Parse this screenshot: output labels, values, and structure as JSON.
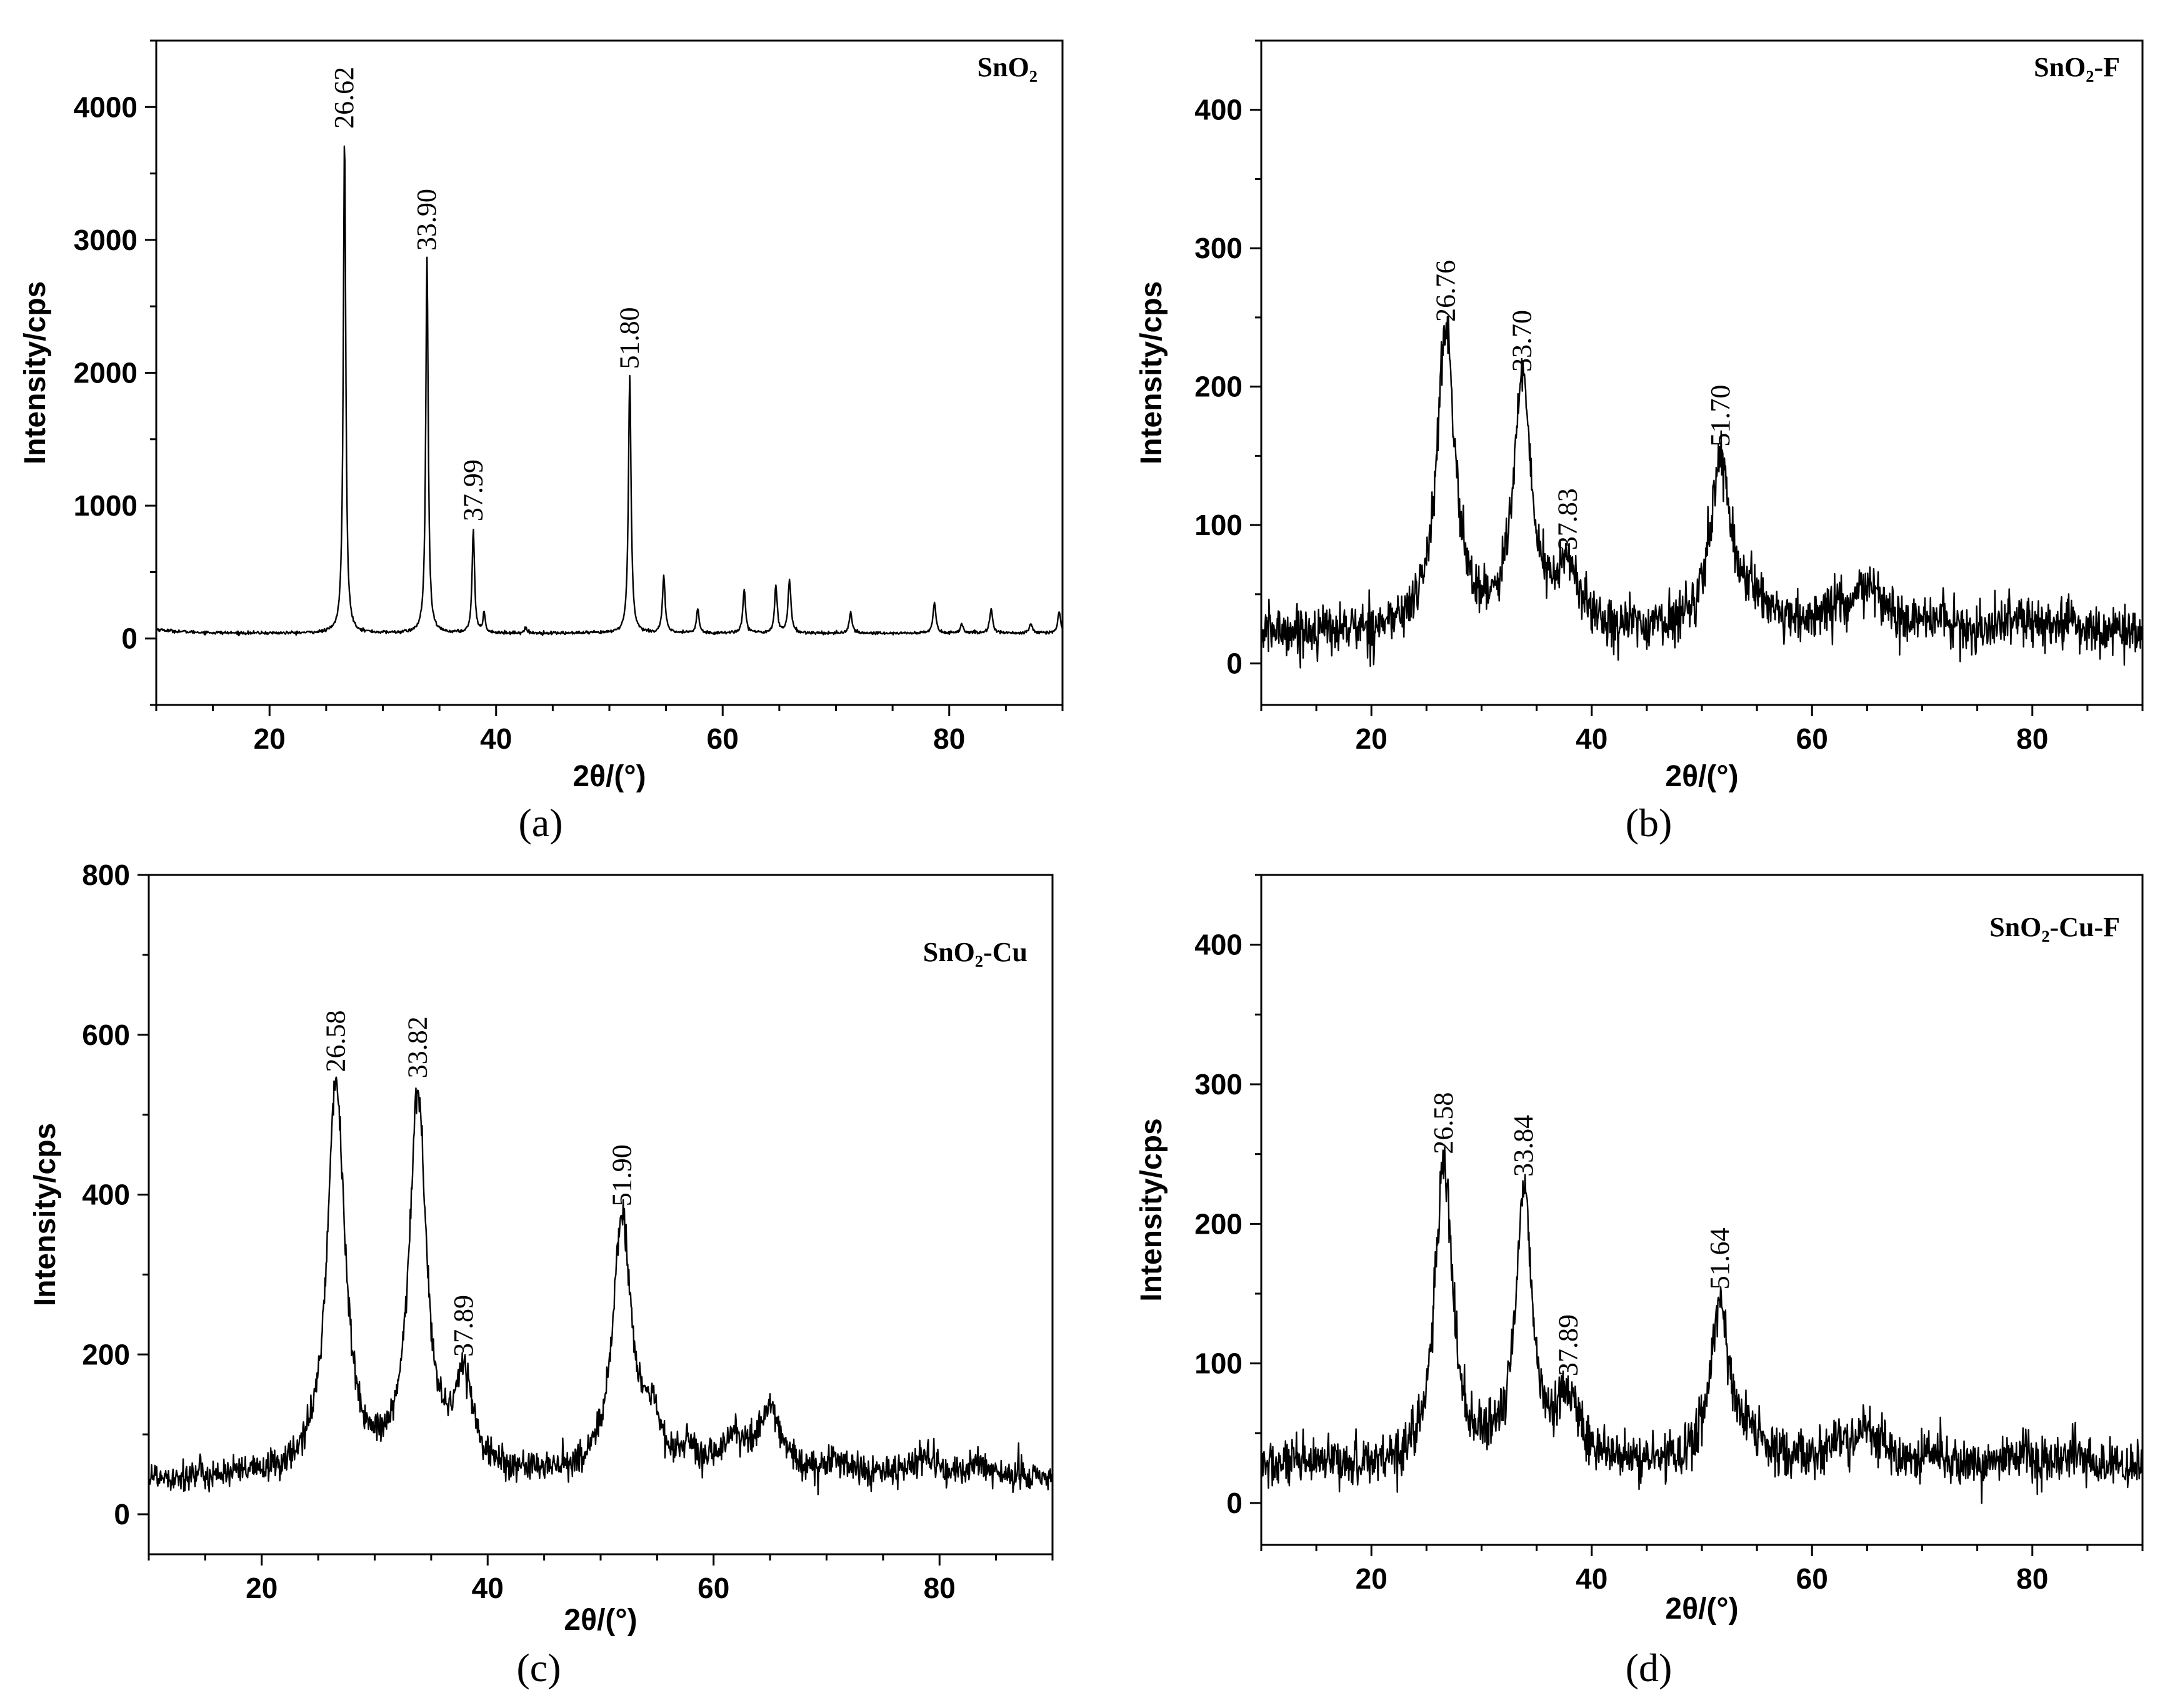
{
  "figure": {
    "panels": [
      "a",
      "b",
      "c",
      "d"
    ]
  },
  "chart_data": [
    {
      "id": "a",
      "type": "line",
      "panel_label": "(a)",
      "title": "SnO₂",
      "xlabel": "2θ/(°)",
      "ylabel": "Intensity/cps",
      "xlim": [
        10,
        90
      ],
      "ylim": [
        -500,
        4500
      ],
      "xticks": [
        20,
        40,
        60,
        80
      ],
      "yticks": [
        0,
        1000,
        2000,
        3000,
        4000
      ],
      "grid": false,
      "baseline": 40,
      "noise": 6,
      "peaks": [
        {
          "x": 26.62,
          "y": 3740,
          "w": 0.13
        },
        {
          "x": 33.9,
          "y": 2820,
          "w": 0.13
        },
        {
          "x": 37.99,
          "y": 780,
          "w": 0.13
        },
        {
          "x": 38.95,
          "y": 150,
          "w": 0.12
        },
        {
          "x": 42.6,
          "y": 40,
          "w": 0.12
        },
        {
          "x": 51.8,
          "y": 1930,
          "w": 0.14
        },
        {
          "x": 54.8,
          "y": 430,
          "w": 0.14
        },
        {
          "x": 57.8,
          "y": 180,
          "w": 0.14
        },
        {
          "x": 61.9,
          "y": 340,
          "w": 0.14
        },
        {
          "x": 64.7,
          "y": 350,
          "w": 0.14
        },
        {
          "x": 65.9,
          "y": 400,
          "w": 0.15
        },
        {
          "x": 71.3,
          "y": 150,
          "w": 0.15
        },
        {
          "x": 78.7,
          "y": 230,
          "w": 0.15
        },
        {
          "x": 81.1,
          "y": 70,
          "w": 0.15
        },
        {
          "x": 83.7,
          "y": 190,
          "w": 0.15
        },
        {
          "x": 87.2,
          "y": 70,
          "w": 0.15
        },
        {
          "x": 89.7,
          "y": 160,
          "w": 0.15
        }
      ],
      "annotations": [
        {
          "x": 26.62,
          "text": "26.62"
        },
        {
          "x": 33.9,
          "text": "33.90"
        },
        {
          "x": 37.99,
          "text": "37.99"
        },
        {
          "x": 51.8,
          "text": "51.80"
        }
      ]
    },
    {
      "id": "b",
      "type": "line",
      "panel_label": "(b)",
      "title": "SnO₂-F",
      "xlabel": "2θ/(°)",
      "ylabel": "Intensity/cps",
      "xlim": [
        10,
        90
      ],
      "ylim": [
        -30,
        450
      ],
      "xticks": [
        20,
        40,
        60,
        80
      ],
      "yticks": [
        0,
        100,
        200,
        300,
        400
      ],
      "grid": false,
      "baseline": 22,
      "noise": 9,
      "peaks": [
        {
          "x": 26.76,
          "y": 215,
          "w": 1.0
        },
        {
          "x": 33.7,
          "y": 175,
          "w": 1.0
        },
        {
          "x": 37.83,
          "y": 42,
          "w": 1.2
        },
        {
          "x": 51.7,
          "y": 125,
          "w": 1.1
        },
        {
          "x": 54.6,
          "y": 22,
          "w": 1.0
        },
        {
          "x": 61.8,
          "y": 12,
          "w": 1.5
        },
        {
          "x": 65.2,
          "y": 30,
          "w": 1.6
        },
        {
          "x": 71.0,
          "y": 8,
          "w": 1.2
        },
        {
          "x": 78.8,
          "y": 12,
          "w": 1.2
        },
        {
          "x": 83.5,
          "y": 6,
          "w": 1.2
        }
      ],
      "annotations": [
        {
          "x": 26.76,
          "text": "26.76"
        },
        {
          "x": 33.7,
          "text": "33.70"
        },
        {
          "x": 37.83,
          "text": "37.83"
        },
        {
          "x": 51.7,
          "text": "51.70"
        }
      ]
    },
    {
      "id": "c",
      "type": "line",
      "panel_label": "(c)",
      "title": "SnO₂-Cu",
      "xlabel": "2θ/(°)",
      "ylabel": "Intensity/cps",
      "xlim": [
        10,
        90
      ],
      "ylim": [
        -50,
        800
      ],
      "xticks": [
        20,
        40,
        60,
        80
      ],
      "yticks": [
        0,
        200,
        400,
        600,
        800
      ],
      "grid": false,
      "baseline": 45,
      "noise": 10,
      "peaks": [
        {
          "x": 26.58,
          "y": 490,
          "w": 0.95
        },
        {
          "x": 33.82,
          "y": 475,
          "w": 0.9
        },
        {
          "x": 37.89,
          "y": 115,
          "w": 1.0
        },
        {
          "x": 51.9,
          "y": 320,
          "w": 1.0
        },
        {
          "x": 54.5,
          "y": 60,
          "w": 0.9
        },
        {
          "x": 57.8,
          "y": 25,
          "w": 1.0
        },
        {
          "x": 61.8,
          "y": 40,
          "w": 1.1
        },
        {
          "x": 65.0,
          "y": 80,
          "w": 1.3
        },
        {
          "x": 71.3,
          "y": 18,
          "w": 1.1
        },
        {
          "x": 78.8,
          "y": 25,
          "w": 1.2
        },
        {
          "x": 83.7,
          "y": 18,
          "w": 1.0
        }
      ],
      "annotations": [
        {
          "x": 26.58,
          "text": "26.58"
        },
        {
          "x": 33.82,
          "text": "33.82"
        },
        {
          "x": 37.89,
          "text": "37.89"
        },
        {
          "x": 51.9,
          "text": "51.90"
        }
      ]
    },
    {
      "id": "d",
      "type": "line",
      "panel_label": "(d)",
      "title": "SnO₂-Cu-F",
      "xlabel": "2θ/(°)",
      "ylabel": "Intensity/cps",
      "xlim": [
        10,
        90
      ],
      "ylim": [
        -30,
        450
      ],
      "xticks": [
        20,
        40,
        60,
        80
      ],
      "yticks": [
        0,
        100,
        200,
        300,
        400
      ],
      "grid": false,
      "baseline": 26,
      "noise": 9,
      "peaks": [
        {
          "x": 26.58,
          "y": 215,
          "w": 0.95
        },
        {
          "x": 33.84,
          "y": 195,
          "w": 0.9
        },
        {
          "x": 37.89,
          "y": 48,
          "w": 1.1
        },
        {
          "x": 51.64,
          "y": 118,
          "w": 1.0
        },
        {
          "x": 54.5,
          "y": 18,
          "w": 1.0
        },
        {
          "x": 61.8,
          "y": 12,
          "w": 1.4
        },
        {
          "x": 65.0,
          "y": 25,
          "w": 1.3
        },
        {
          "x": 71.0,
          "y": 6,
          "w": 1.2
        },
        {
          "x": 78.8,
          "y": 8,
          "w": 1.2
        },
        {
          "x": 83.6,
          "y": 6,
          "w": 1.2
        }
      ],
      "annotations": [
        {
          "x": 26.58,
          "text": "26.58"
        },
        {
          "x": 33.84,
          "text": "33.84"
        },
        {
          "x": 37.89,
          "text": "37.89"
        },
        {
          "x": 51.64,
          "text": "51.64"
        }
      ]
    }
  ]
}
